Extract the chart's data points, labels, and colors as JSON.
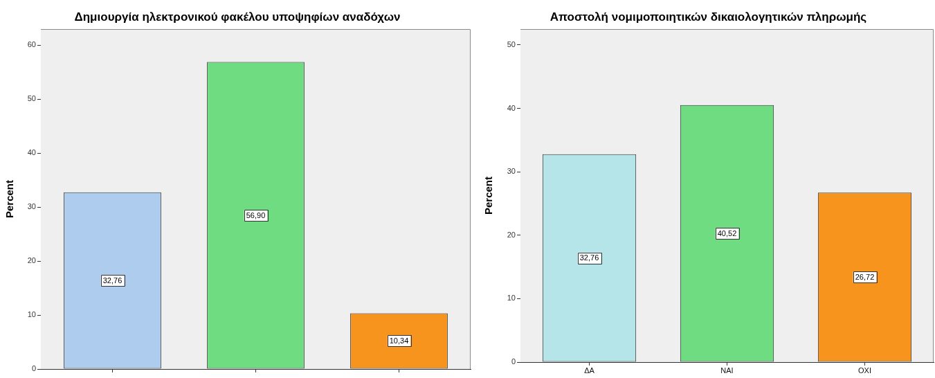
{
  "chart_data": [
    {
      "type": "bar",
      "title": "Δημιουργία ηλεκτρονικού φακέλου υποψηφίων αναδόχων",
      "ylabel": "Percent",
      "categories": [
        null,
        null,
        null
      ],
      "values": [
        32.76,
        56.9,
        10.34
      ],
      "colors": [
        "#aecdee",
        "#70dc82",
        "#f7941d"
      ],
      "value_labels": [
        "32,76",
        "56,90",
        "10,34"
      ],
      "ylim": [
        0,
        63
      ],
      "yticks": [
        0,
        10,
        20,
        30,
        40,
        50,
        60
      ]
    },
    {
      "type": "bar",
      "title": "Αποστολή νομιμοποιητικών δικαιολογητικών πληρωμής",
      "ylabel": "Percent",
      "categories": [
        "ΔΑ",
        "ΝΑΙ",
        "ΟΧΙ"
      ],
      "values": [
        32.76,
        40.52,
        26.72
      ],
      "colors": [
        "#b5e5e8",
        "#70dc82",
        "#f7941d"
      ],
      "value_labels": [
        "32,76",
        "40,52",
        "26,72"
      ],
      "ylim": [
        0,
        52.5
      ],
      "yticks": [
        0,
        10,
        20,
        30,
        40,
        50
      ]
    }
  ]
}
